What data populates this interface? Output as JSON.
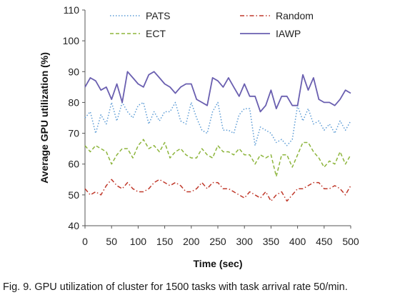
{
  "caption": "Fig. 9. GPU utilization of cluster for 1500 tasks with task arrival rate 50/min.",
  "chart_data": {
    "type": "line",
    "title": "",
    "xlabel": "Time (sec)",
    "ylabel": "Average GPU utilization (%)",
    "xlim": [
      0,
      500
    ],
    "ylim": [
      40,
      110
    ],
    "xticks": [
      0,
      50,
      100,
      150,
      200,
      250,
      300,
      350,
      400,
      450,
      500
    ],
    "yticks": [
      40,
      50,
      60,
      70,
      80,
      90,
      100,
      110
    ],
    "grid": false,
    "legend": "top, two columns",
    "x": [
      0,
      10,
      20,
      30,
      40,
      50,
      60,
      70,
      80,
      90,
      100,
      110,
      120,
      130,
      140,
      150,
      160,
      170,
      180,
      190,
      200,
      210,
      220,
      230,
      240,
      250,
      260,
      270,
      280,
      290,
      300,
      310,
      320,
      330,
      340,
      350,
      360,
      370,
      380,
      390,
      400,
      410,
      420,
      430,
      440,
      450,
      460,
      470,
      480,
      490,
      500
    ],
    "series": [
      {
        "name": "PATS",
        "color": "#5b9bd5",
        "dash": "1.5,2.5",
        "values": [
          75,
          77,
          70,
          76,
          73,
          80,
          74,
          80,
          77,
          75,
          79,
          80,
          73,
          77,
          74,
          77,
          77,
          80,
          74,
          73,
          80,
          75,
          71,
          70,
          77,
          80,
          71,
          71,
          70,
          76,
          78,
          78,
          66,
          72,
          71,
          70,
          67,
          68,
          66,
          68,
          79,
          74,
          78,
          73,
          74,
          71,
          73,
          70,
          74,
          71,
          74
        ]
      },
      {
        "name": "Random",
        "color": "#c0392b",
        "dash": "6,3,1.5,3",
        "values": [
          52,
          50,
          51,
          50,
          53,
          55,
          53,
          52,
          54,
          52,
          51,
          51,
          52,
          54,
          55,
          54,
          53,
          54,
          53,
          51,
          51,
          52,
          54,
          52,
          54,
          54,
          52,
          52,
          51,
          50,
          49,
          51,
          50,
          49,
          51,
          48,
          50,
          51,
          48,
          50,
          52,
          52,
          53,
          54,
          54,
          52,
          52,
          53,
          52,
          50,
          53
        ]
      },
      {
        "name": "ECT",
        "color": "#8db53c",
        "dash": "5,3",
        "values": [
          66,
          64,
          66,
          65,
          64,
          60,
          63,
          65,
          65,
          62,
          66,
          68,
          65,
          66,
          64,
          67,
          62,
          64,
          65,
          63,
          62,
          62,
          65,
          63,
          62,
          66,
          64,
          64,
          63,
          65,
          63,
          63,
          60,
          63,
          62,
          63,
          56,
          63,
          63,
          59,
          63,
          67,
          67,
          64,
          62,
          59,
          61,
          60,
          64,
          60,
          63
        ]
      },
      {
        "name": "IAWP",
        "color": "#6a5fb0",
        "dash": "",
        "values": [
          85,
          88,
          87,
          84,
          85,
          81,
          86,
          80,
          90,
          88,
          86,
          85,
          89,
          90,
          88,
          86,
          85,
          83,
          85,
          86,
          86,
          81,
          80,
          79,
          88,
          87,
          85,
          88,
          85,
          82,
          86,
          82,
          82,
          77,
          79,
          84,
          78,
          82,
          82,
          79,
          79,
          89,
          84,
          88,
          81,
          80,
          80,
          79,
          81,
          84,
          83
        ]
      }
    ]
  }
}
